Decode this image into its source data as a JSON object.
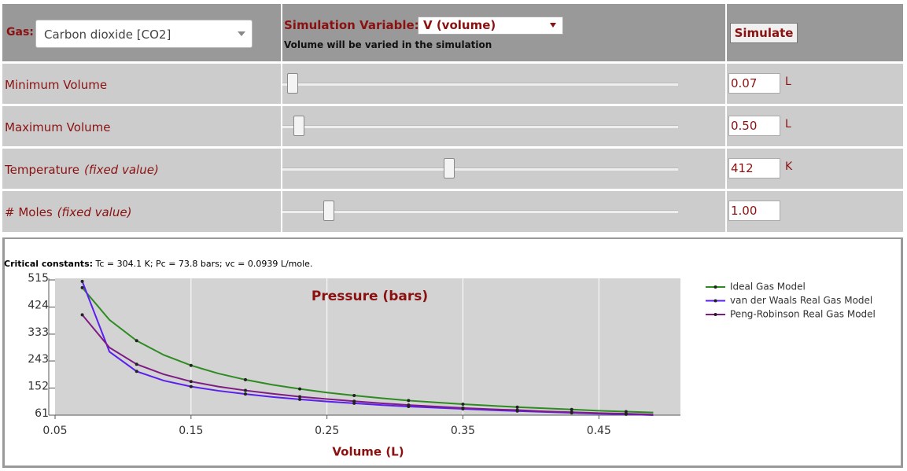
{
  "controls": {
    "gas_label": "Gas:",
    "gas_value": "Carbon dioxide [CO2]",
    "sim_var_label": "Simulation Variable:",
    "sim_var_value": "V (volume)",
    "sim_var_note": "Volume will be varied in the simulation",
    "simulate": "Simulate",
    "rows": [
      {
        "label": "Minimum Volume",
        "value": "0.07",
        "unit": "L"
      },
      {
        "label": "Maximum Volume",
        "value": "0.50",
        "unit": "L"
      },
      {
        "label": "Temperature",
        "note": "(fixed value)",
        "value": "412",
        "unit": "K"
      },
      {
        "label": "# Moles",
        "note": "(fixed value)",
        "value": "1.00"
      }
    ]
  },
  "critical": {
    "label": "Critical constants:",
    "text": "Tc = 304.1 K; Pc = 73.8 bars; vc = 0.0939 L/mole."
  },
  "chart_data": {
    "type": "line",
    "title": "Pressure (bars)",
    "xlabel": "Volume (L)",
    "x": [
      0.07,
      0.09,
      0.11,
      0.13,
      0.15,
      0.17,
      0.19,
      0.21,
      0.23,
      0.25,
      0.27,
      0.29,
      0.31,
      0.33,
      0.35,
      0.37,
      0.39,
      0.41,
      0.43,
      0.45,
      0.47,
      0.49
    ],
    "series": [
      {
        "name": "Ideal Gas Model",
        "color": "#2e8b22",
        "values": [
          489,
          381,
          311,
          263,
          228,
          201,
          180,
          163,
          149,
          137,
          127,
          118,
          110,
          104,
          98,
          93,
          88,
          84,
          80,
          76,
          73,
          70
        ]
      },
      {
        "name": "van der Waals Real Gas Model",
        "color": "#5a1ff0",
        "values": [
          510,
          274,
          208,
          177,
          157,
          143,
          132,
          122,
          114,
          107,
          101,
          95,
          90,
          86,
          82,
          78,
          75,
          72,
          69,
          66,
          64,
          61
        ]
      },
      {
        "name": "Peng-Robinson Real Gas Model",
        "color": "#7e1c86",
        "values": [
          398,
          288,
          232,
          198,
          174,
          157,
          144,
          133,
          123,
          115,
          108,
          101,
          95,
          90,
          85,
          81,
          78,
          74,
          71,
          68,
          66,
          63
        ]
      }
    ],
    "xlim": [
      0.05,
      0.51
    ],
    "xticks": [
      0.05,
      0.15,
      0.25,
      0.35,
      0.45
    ],
    "ylim": [
      61,
      515
    ],
    "yticks": [
      61,
      152,
      243,
      333,
      424,
      515
    ],
    "grid": true,
    "legend": "right"
  }
}
